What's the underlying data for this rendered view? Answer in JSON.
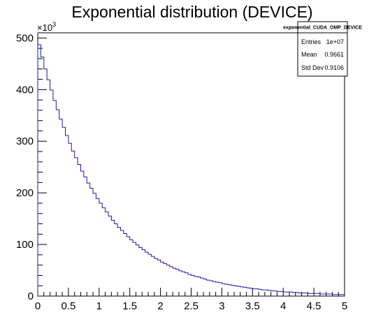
{
  "chart_data": {
    "type": "bar",
    "title": "Exponential distribution (DEVICE)",
    "xlabel": "",
    "ylabel": "",
    "y_multiplier_label": "×10",
    "y_multiplier_exponent": "3",
    "xlim": [
      0,
      5
    ],
    "ylim": [
      0,
      510
    ],
    "x_ticks": [
      "0",
      "0.5",
      "1",
      "1.5",
      "2",
      "2.5",
      "3",
      "3.5",
      "4",
      "4.5",
      "5"
    ],
    "y_ticks": [
      "0",
      "100",
      "200",
      "300",
      "400",
      "500"
    ],
    "bin_width": 0.05,
    "values": [
      487,
      463,
      440,
      419,
      399,
      379,
      361,
      343,
      327,
      311,
      296,
      281,
      268,
      255,
      242,
      231,
      219,
      209,
      199,
      189,
      180,
      171,
      163,
      155,
      147,
      140,
      133,
      127,
      121,
      115,
      109,
      104,
      99,
      94,
      90,
      85,
      81,
      77,
      73,
      70,
      66,
      63,
      60,
      57,
      54,
      52,
      49,
      47,
      45,
      42,
      40,
      38,
      37,
      35,
      33,
      31,
      30,
      28,
      27,
      26,
      24,
      23,
      22,
      21,
      20,
      19,
      18,
      17,
      16,
      15,
      14,
      14,
      13,
      12,
      12,
      11,
      10,
      10,
      9,
      9,
      8,
      8,
      8,
      7,
      7,
      6,
      6,
      6,
      5,
      5,
      5,
      5,
      4,
      4,
      4,
      4,
      3,
      3,
      3,
      3
    ],
    "grid": false,
    "line_color": "#1a1aa8",
    "stats_box": {
      "name": "exponential_CUDA_OMP_DEVICE",
      "rows": [
        {
          "label": "Entries",
          "value": "1e+07"
        },
        {
          "label": "Mean",
          "value": "0.9661"
        },
        {
          "label": "Std Dev",
          "value": "0.9106"
        }
      ]
    }
  }
}
